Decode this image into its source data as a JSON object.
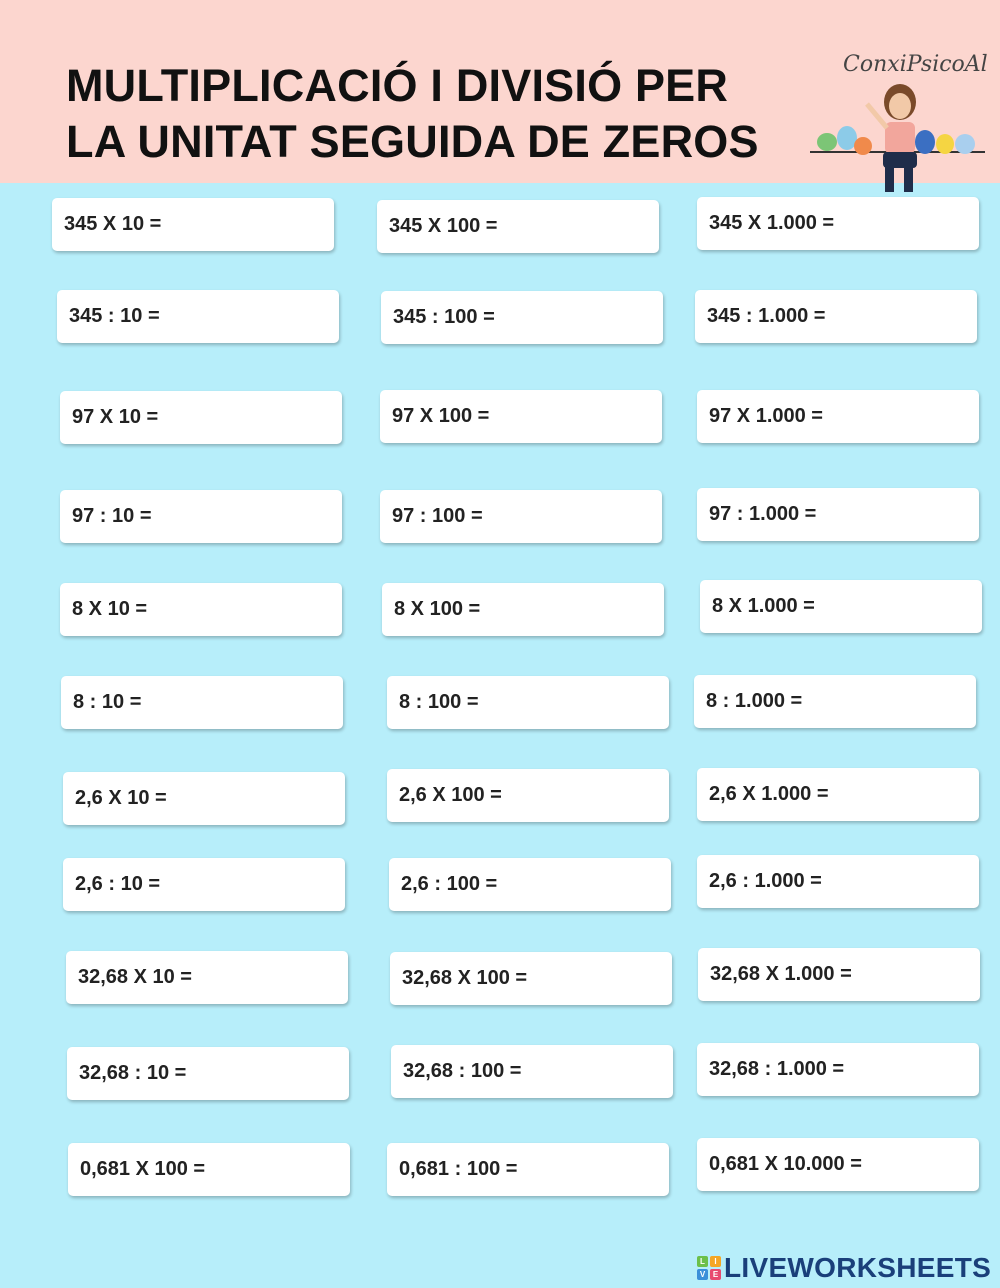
{
  "header": {
    "title_line1": "MULTIPLICACIÓ I DIVISIÓ PER",
    "title_line2": "LA UNITAT SEGUIDA DE ZEROS",
    "brand": "ConxiPsicoAl"
  },
  "exercises": [
    [
      "345 X 10 =",
      "345 X 100 =",
      "345 X 1.000 ="
    ],
    [
      "345 : 10 =",
      "345 : 100 =",
      "345 : 1.000 ="
    ],
    [
      "97 X 10 =",
      "97 X 100 =",
      "97 X 1.000 ="
    ],
    [
      "97 : 10 =",
      "97 : 100 =",
      "97 : 1.000 ="
    ],
    [
      "8 X 10 =",
      "8 X 100 =",
      "8 X 1.000 ="
    ],
    [
      "8 : 10 =",
      "8 : 100 =",
      "8 : 1.000 ="
    ],
    [
      "2,6 X 10 =",
      "2,6 X 100 =",
      "2,6 X 1.000 ="
    ],
    [
      "2,6 : 10 =",
      "2,6 : 100 =",
      "2,6 : 1.000 ="
    ],
    [
      "32,68 X 10 =",
      "32,68 X 100 =",
      "32,68 X 1.000 ="
    ],
    [
      "32,68 : 10 =",
      "32,68 : 100 =",
      "32,68 : 1.000 ="
    ],
    [
      "0,681 X 100 =",
      "0,681 : 100 =",
      "0,681 X 10.000 ="
    ]
  ],
  "footer": {
    "logo_letters": [
      "L",
      "I",
      "V",
      "E"
    ],
    "logo_text": "LIVEWORKSHEETS"
  },
  "colors": {
    "header_bg": "#fcd6cf",
    "page_bg": "#b7eefa",
    "logo_text": "#1a3f7a"
  }
}
